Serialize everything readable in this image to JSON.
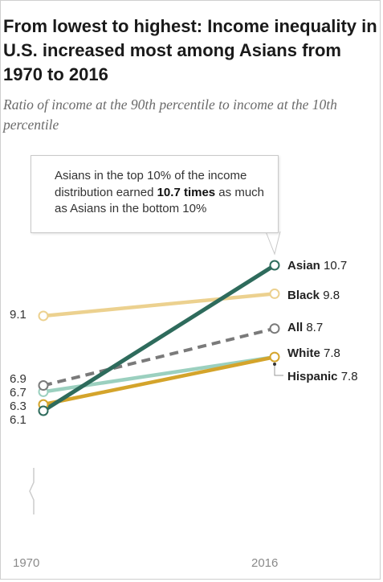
{
  "title": "From lowest to highest: Income inequality in U.S. increased most among Asians from 1970 to 2016",
  "subtitle": "Ratio of income at the 90th percentile to income at the 10th percentile",
  "callout": {
    "before": "Asians in the top 10% of the income distribution earned ",
    "bold": "10.7 times",
    "after": " as much as Asians in the bottom 10%"
  },
  "colors": {
    "asian": "#2e6b5c",
    "black": "#ecd18f",
    "all": "#7a7a7a",
    "white": "#d4a42b",
    "hispanic": "#9bd0bf"
  },
  "chart_data": {
    "type": "line",
    "x": [
      "1970",
      "2016"
    ],
    "series": [
      {
        "name": "Black",
        "values": [
          9.1,
          9.8
        ]
      },
      {
        "name": "All",
        "values": [
          6.9,
          8.7
        ]
      },
      {
        "name": "Hispanic",
        "values": [
          6.7,
          7.8
        ]
      },
      {
        "name": "White",
        "values": [
          6.3,
          7.8
        ]
      },
      {
        "name": "Asian",
        "values": [
          6.1,
          10.7
        ]
      }
    ],
    "start_labels": [
      "9.1",
      "6.9",
      "6.7",
      "6.3",
      "6.1"
    ],
    "end_labels": {
      "Asian": "10.7",
      "Black": "9.8",
      "All": "8.7",
      "White": "7.8",
      "Hispanic": "7.8"
    },
    "axis_break": true,
    "grid": false
  }
}
